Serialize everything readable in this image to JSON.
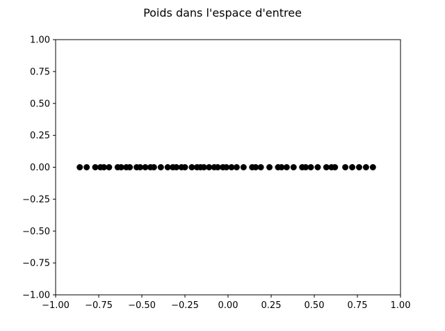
{
  "chart_data": {
    "type": "scatter",
    "title": "Poids dans l'espace d'entree",
    "xlabel": "",
    "ylabel": "",
    "xlim": [
      -1.0,
      1.0
    ],
    "ylim": [
      -1.0,
      1.0
    ],
    "xticks": [
      -1.0,
      -0.75,
      -0.5,
      -0.25,
      0.0,
      0.25,
      0.5,
      0.75,
      1.0
    ],
    "yticks": [
      -1.0,
      -0.75,
      -0.5,
      -0.25,
      0.0,
      0.25,
      0.5,
      0.75,
      1.0
    ],
    "xtick_labels": [
      "−1.00",
      "−0.75",
      "−0.50",
      "−0.25",
      "0.00",
      "0.25",
      "0.50",
      "0.75",
      "1.00"
    ],
    "ytick_labels": [
      "−1.00",
      "−0.75",
      "−0.50",
      "−0.25",
      "0.00",
      "0.25",
      "0.50",
      "0.75",
      "1.00"
    ],
    "grid": false,
    "marker_color": "#000000",
    "points": [
      {
        "x": -0.86,
        "y": 0.0
      },
      {
        "x": -0.82,
        "y": 0.0
      },
      {
        "x": -0.77,
        "y": 0.0
      },
      {
        "x": -0.74,
        "y": 0.0
      },
      {
        "x": -0.72,
        "y": 0.0
      },
      {
        "x": -0.69,
        "y": 0.0
      },
      {
        "x": -0.64,
        "y": 0.0
      },
      {
        "x": -0.62,
        "y": 0.0
      },
      {
        "x": -0.59,
        "y": 0.0
      },
      {
        "x": -0.57,
        "y": 0.0
      },
      {
        "x": -0.53,
        "y": 0.0
      },
      {
        "x": -0.51,
        "y": 0.0
      },
      {
        "x": -0.48,
        "y": 0.0
      },
      {
        "x": -0.45,
        "y": 0.0
      },
      {
        "x": -0.43,
        "y": 0.0
      },
      {
        "x": -0.39,
        "y": 0.0
      },
      {
        "x": -0.35,
        "y": 0.0
      },
      {
        "x": -0.32,
        "y": 0.0
      },
      {
        "x": -0.3,
        "y": 0.0
      },
      {
        "x": -0.27,
        "y": 0.0
      },
      {
        "x": -0.25,
        "y": 0.0
      },
      {
        "x": -0.21,
        "y": 0.0
      },
      {
        "x": -0.18,
        "y": 0.0
      },
      {
        "x": -0.16,
        "y": 0.0
      },
      {
        "x": -0.14,
        "y": 0.0
      },
      {
        "x": -0.11,
        "y": 0.0
      },
      {
        "x": -0.08,
        "y": 0.0
      },
      {
        "x": -0.06,
        "y": 0.0
      },
      {
        "x": -0.03,
        "y": 0.0
      },
      {
        "x": -0.01,
        "y": 0.0
      },
      {
        "x": 0.02,
        "y": 0.0
      },
      {
        "x": 0.05,
        "y": 0.0
      },
      {
        "x": 0.09,
        "y": 0.0
      },
      {
        "x": 0.14,
        "y": 0.0
      },
      {
        "x": 0.16,
        "y": 0.0
      },
      {
        "x": 0.19,
        "y": 0.0
      },
      {
        "x": 0.24,
        "y": 0.0
      },
      {
        "x": 0.29,
        "y": 0.0
      },
      {
        "x": 0.31,
        "y": 0.0
      },
      {
        "x": 0.34,
        "y": 0.0
      },
      {
        "x": 0.38,
        "y": 0.0
      },
      {
        "x": 0.43,
        "y": 0.0
      },
      {
        "x": 0.45,
        "y": 0.0
      },
      {
        "x": 0.48,
        "y": 0.0
      },
      {
        "x": 0.52,
        "y": 0.0
      },
      {
        "x": 0.57,
        "y": 0.0
      },
      {
        "x": 0.6,
        "y": 0.0
      },
      {
        "x": 0.62,
        "y": 0.0
      },
      {
        "x": 0.68,
        "y": 0.0
      },
      {
        "x": 0.72,
        "y": 0.0
      },
      {
        "x": 0.76,
        "y": 0.0
      },
      {
        "x": 0.8,
        "y": 0.0
      },
      {
        "x": 0.84,
        "y": 0.0
      }
    ]
  }
}
